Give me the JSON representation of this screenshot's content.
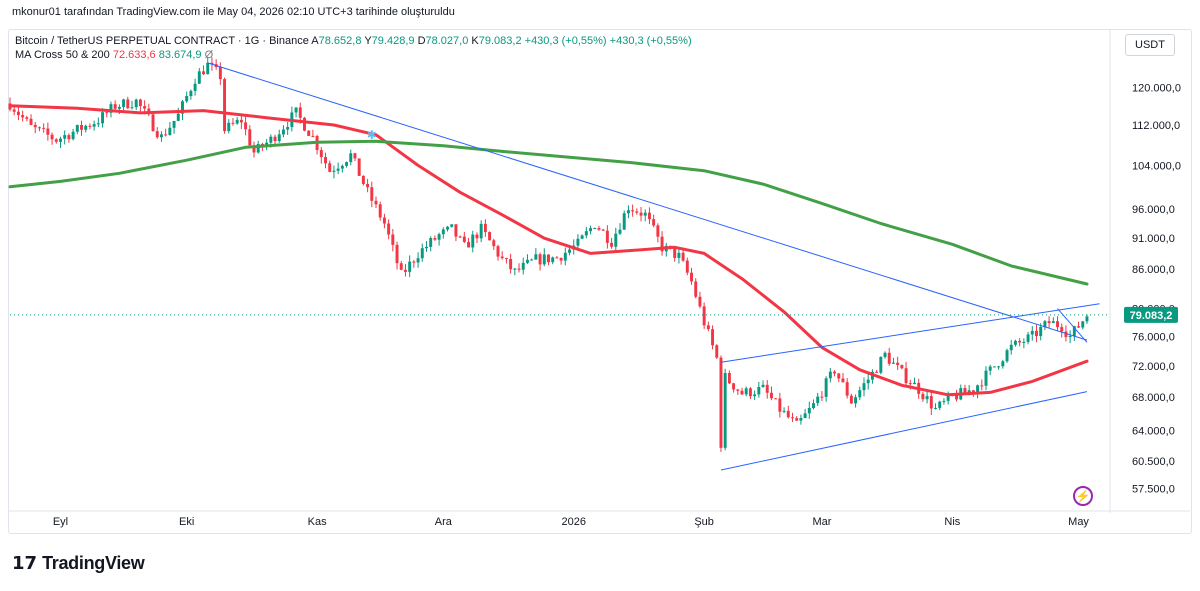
{
  "caption": "mkonur01 tarafından TradingView.com ile May 04, 2026 02:10 UTC+3 tarihinde oluşturuldu",
  "legend": {
    "symbol": "Bitcoin / TetherUS PERPETUAL CONTRACT · 1G · Binance",
    "open_label": "A",
    "open": "78.652,8",
    "high_label": "Y",
    "high": "79.428,9",
    "low_label": "D",
    "low": "78.027,0",
    "close_label": "K",
    "close": "79.083,2",
    "change1": "+430,3 (+0,55%)",
    "change2": "+430,3 (+0,55%)",
    "indicator_name": "MA Cross 50 & 200",
    "ma50_value": "72.633,6",
    "ma200_value": "83.674,9",
    "indicator_extra": "Ø"
  },
  "currency_button": "USDT",
  "brand": "TradingView",
  "brand_icon": "tradingview-logo-icon",
  "colors": {
    "up": "#089981",
    "down": "#f23645",
    "ma50": "#f23645",
    "ma200": "#43a047",
    "trendline": "#2962ff",
    "price_line": "#089981",
    "alert_icon": "#9c27b0"
  },
  "chart_data": {
    "type": "candlestick",
    "title": "",
    "symbol": "Bitcoin / TetherUS PERPETUAL CONTRACT",
    "interval": "1G",
    "exchange": "Binance",
    "y_scale": "log",
    "ylim": [
      55500,
      128500
    ],
    "y_ticks": [
      {
        "value": 120000,
        "label": "120.000,0"
      },
      {
        "value": 112000,
        "label": "112.000,0"
      },
      {
        "value": 104000,
        "label": "104.000,0"
      },
      {
        "value": 96000,
        "label": "96.000,0"
      },
      {
        "value": 91000,
        "label": "91.000,0"
      },
      {
        "value": 86000,
        "label": "86.000,0"
      },
      {
        "value": 80000,
        "label": "80.000,0"
      },
      {
        "value": 76000,
        "label": "76.000,0"
      },
      {
        "value": 72000,
        "label": "72.000,0"
      },
      {
        "value": 68000,
        "label": "68.000,0"
      },
      {
        "value": 64000,
        "label": "64.000,0"
      },
      {
        "value": 60500,
        "label": "60.500,0"
      },
      {
        "value": 57500,
        "label": "57.500,0"
      }
    ],
    "x_ticks": [
      {
        "date": "2025-09-01",
        "label": "Eyl"
      },
      {
        "date": "2025-10-01",
        "label": "Eki"
      },
      {
        "date": "2025-11-01",
        "label": "Kas"
      },
      {
        "date": "2025-12-01",
        "label": "Ara"
      },
      {
        "date": "2026-01-01",
        "label": "2026"
      },
      {
        "date": "2026-02-01",
        "label": "Şub"
      },
      {
        "date": "2026-03-01",
        "label": "Mar"
      },
      {
        "date": "2026-04-01",
        "label": "Nis"
      },
      {
        "date": "2026-05-01",
        "label": "May"
      }
    ],
    "xlim": [
      "2025-08-20",
      "2026-05-08"
    ],
    "last_price": {
      "value": 79083.2,
      "label": "79.083,2"
    },
    "price_path": [
      [
        "2025-08-20",
        116500
      ],
      [
        "2025-08-25",
        111500
      ],
      [
        "2025-08-31",
        109000
      ],
      [
        "2025-09-05",
        111000
      ],
      [
        "2025-09-10",
        113000
      ],
      [
        "2025-09-14",
        116000
      ],
      [
        "2025-09-19",
        117000
      ],
      [
        "2025-09-25",
        109500
      ],
      [
        "2025-09-29",
        114000
      ],
      [
        "2025-10-03",
        122000
      ],
      [
        "2025-10-06",
        125000
      ],
      [
        "2025-10-09",
        122500
      ],
      [
        "2025-10-10",
        111000
      ],
      [
        "2025-10-14",
        113000
      ],
      [
        "2025-10-17",
        106500
      ],
      [
        "2025-10-21",
        109000
      ],
      [
        "2025-10-27",
        114500
      ],
      [
        "2025-10-31",
        109500
      ],
      [
        "2025-11-04",
        103000
      ],
      [
        "2025-11-09",
        106000
      ],
      [
        "2025-11-13",
        99000
      ],
      [
        "2025-11-17",
        93500
      ],
      [
        "2025-11-21",
        85000
      ],
      [
        "2025-11-25",
        88500
      ],
      [
        "2025-11-30",
        91500
      ],
      [
        "2025-12-03",
        92500
      ],
      [
        "2025-12-06",
        89500
      ],
      [
        "2025-12-10",
        92500
      ],
      [
        "2025-12-15",
        87500
      ],
      [
        "2025-12-18",
        85500
      ],
      [
        "2025-12-23",
        87500
      ],
      [
        "2025-12-28",
        87800
      ],
      [
        "2026-01-02",
        90000
      ],
      [
        "2026-01-06",
        93500
      ],
      [
        "2026-01-10",
        90500
      ],
      [
        "2026-01-14",
        96500
      ],
      [
        "2026-01-18",
        95000
      ],
      [
        "2026-01-22",
        89500
      ],
      [
        "2026-01-26",
        88000
      ],
      [
        "2026-01-29",
        84000
      ],
      [
        "2026-02-01",
        78000
      ],
      [
        "2026-02-04",
        73000
      ],
      [
        "2026-02-05",
        62500
      ],
      [
        "2026-02-06",
        70500
      ],
      [
        "2026-02-10",
        68500
      ],
      [
        "2026-02-15",
        69000
      ],
      [
        "2026-02-19",
        66500
      ],
      [
        "2026-02-23",
        64500
      ],
      [
        "2026-02-27",
        67000
      ],
      [
        "2026-03-04",
        71500
      ],
      [
        "2026-03-08",
        67500
      ],
      [
        "2026-03-13",
        71000
      ],
      [
        "2026-03-16",
        73500
      ],
      [
        "2026-03-20",
        71000
      ],
      [
        "2026-03-24",
        69000
      ],
      [
        "2026-03-28",
        66500
      ],
      [
        "2026-04-01",
        68000
      ],
      [
        "2026-04-06",
        69000
      ],
      [
        "2026-04-11",
        72000
      ],
      [
        "2026-04-15",
        74500
      ],
      [
        "2026-04-20",
        76000
      ],
      [
        "2026-04-24",
        78000
      ],
      [
        "2026-04-27",
        77500
      ],
      [
        "2026-04-29",
        76000
      ],
      [
        "2026-05-01",
        77500
      ],
      [
        "2026-05-03",
        79083.2
      ]
    ],
    "series": [
      {
        "name": "MA 50",
        "color": "#f23645",
        "points": [
          [
            "2025-08-20",
            116000
          ],
          [
            "2025-09-05",
            115500
          ],
          [
            "2025-09-20",
            114500
          ],
          [
            "2025-10-05",
            115000
          ],
          [
            "2025-10-20",
            113500
          ],
          [
            "2025-11-05",
            112000
          ],
          [
            "2025-11-15",
            110000
          ],
          [
            "2025-11-25",
            104000
          ],
          [
            "2025-12-05",
            99000
          ],
          [
            "2025-12-15",
            95000
          ],
          [
            "2025-12-25",
            91000
          ],
          [
            "2026-01-05",
            88500
          ],
          [
            "2026-01-15",
            89000
          ],
          [
            "2026-01-25",
            89500
          ],
          [
            "2026-02-01",
            88500
          ],
          [
            "2026-02-10",
            84500
          ],
          [
            "2026-02-20",
            79500
          ],
          [
            "2026-03-01",
            74500
          ],
          [
            "2026-03-10",
            71500
          ],
          [
            "2026-03-20",
            69500
          ],
          [
            "2026-03-31",
            68300
          ],
          [
            "2026-04-10",
            68600
          ],
          [
            "2026-04-20",
            70000
          ],
          [
            "2026-05-03",
            72633.6
          ]
        ]
      },
      {
        "name": "MA 200",
        "color": "#43a047",
        "points": [
          [
            "2025-08-20",
            100000
          ],
          [
            "2025-09-01",
            101000
          ],
          [
            "2025-09-15",
            102500
          ],
          [
            "2025-10-01",
            105000
          ],
          [
            "2025-10-15",
            107500
          ],
          [
            "2025-11-01",
            108500
          ],
          [
            "2025-11-15",
            108700
          ],
          [
            "2025-12-01",
            107800
          ],
          [
            "2025-12-15",
            106700
          ],
          [
            "2026-01-01",
            105500
          ],
          [
            "2026-01-15",
            104500
          ],
          [
            "2026-02-01",
            103000
          ],
          [
            "2026-02-15",
            100500
          ],
          [
            "2026-03-01",
            97000
          ],
          [
            "2026-03-15",
            93500
          ],
          [
            "2026-04-01",
            90000
          ],
          [
            "2026-04-15",
            86500
          ],
          [
            "2026-05-03",
            83674.9
          ]
        ]
      }
    ],
    "trendlines": [
      {
        "from": [
          "2025-10-06",
          125500
        ],
        "to": [
          "2026-05-03",
          75500
        ]
      },
      {
        "from": [
          "2026-02-05",
          72500
        ],
        "to": [
          "2026-05-06",
          80700
        ]
      },
      {
        "from": [
          "2026-02-05",
          59500
        ],
        "to": [
          "2026-05-03",
          68700
        ]
      }
    ],
    "crossover_marker": {
      "date": "2025-11-14",
      "value": 110000
    },
    "alert_icon": "lightning-alert-icon"
  }
}
